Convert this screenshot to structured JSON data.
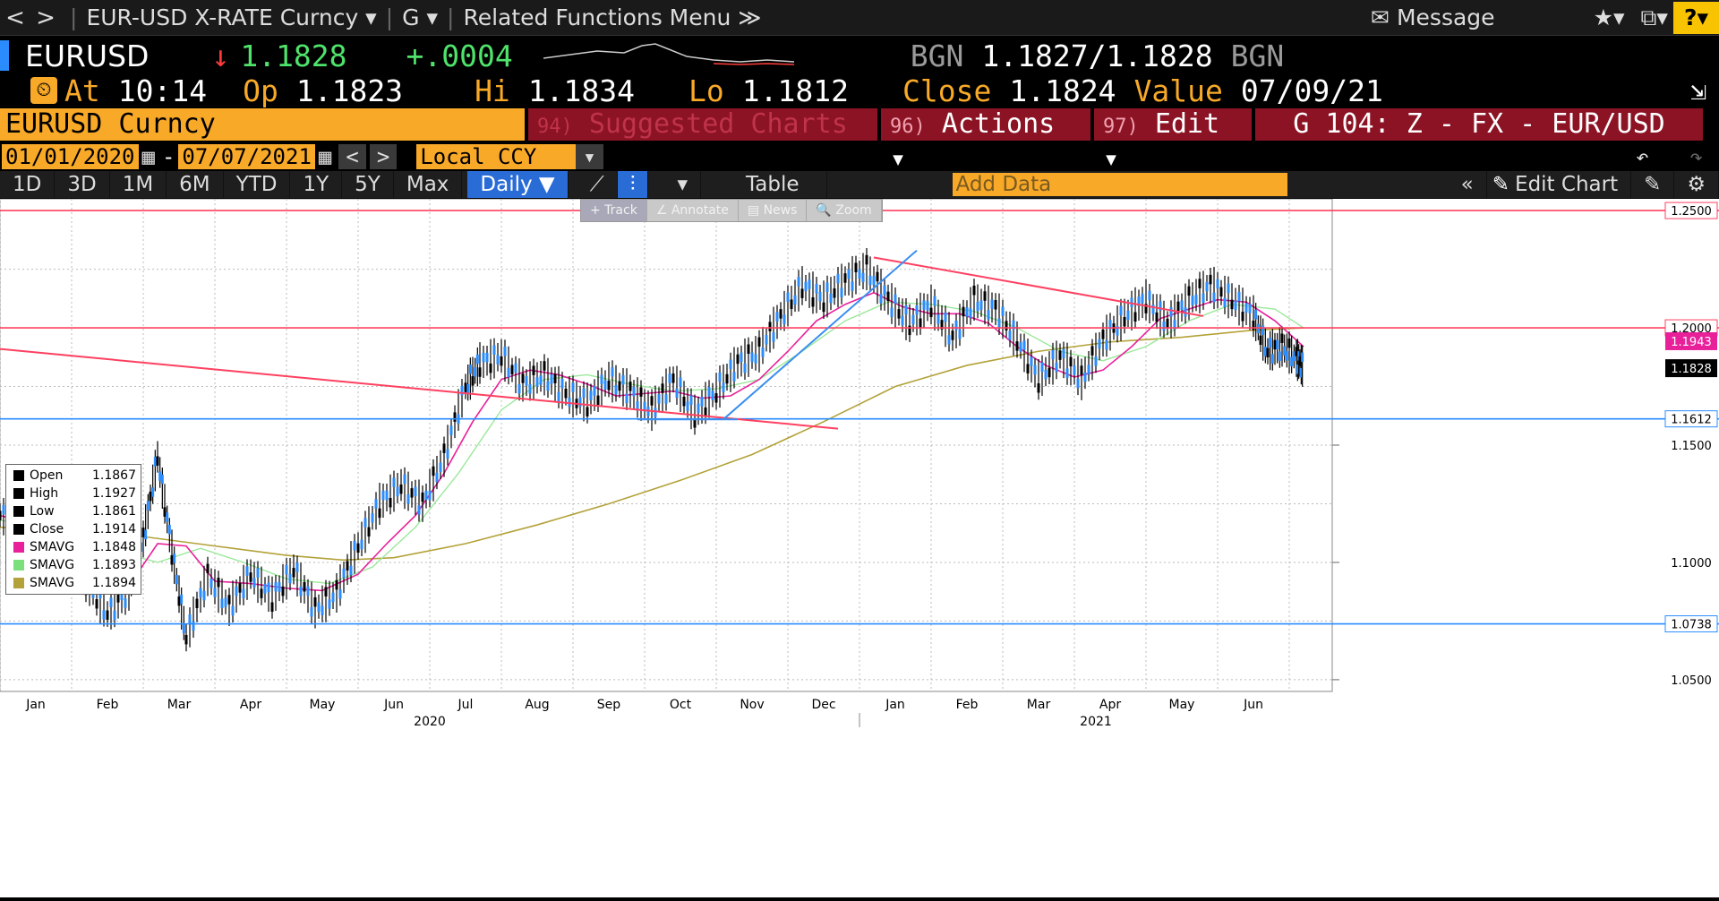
{
  "topbar": {
    "back_label": "<",
    "forward_label": ">",
    "security_label": "EUR-USD X-RATE Curncy ▾",
    "g_label": "G ▾",
    "related_label": "Related Functions Menu ≫",
    "message_label": "Message",
    "star_label": "★▾",
    "window_label": "⧉▾",
    "help_label": "?▾"
  },
  "ticker": {
    "symbol": "EURUSD",
    "arrow": "↓",
    "last": "1.1828",
    "change": "+.0004",
    "bid_src": "BGN",
    "bid_ask": "1.1827/1.1828",
    "ask_src": "BGN"
  },
  "quote": {
    "at_label": "At",
    "time": "10:14",
    "op_label": "Op",
    "op": "1.1823",
    "hi_label": "Hi",
    "hi": "1.1834",
    "lo_label": "Lo",
    "lo": "1.1812",
    "close_label": "Close",
    "close": "1.1824",
    "value_label": "Value",
    "value_date": "07/09/21"
  },
  "secbar": {
    "name": "EURUSD Curncy",
    "suggested_num": "94)",
    "suggested_label": "Suggested Charts",
    "actions_num": "96)",
    "actions_label": "Actions ▾",
    "edit_num": "97)",
    "edit_label": "Edit ▾",
    "gtitle": "G 104: Z - FX - EUR/USD"
  },
  "datebar": {
    "start": "01/01/2020",
    "dash": "-",
    "end": "07/07/2021",
    "ccy": "Local CCY"
  },
  "periods": [
    "1D",
    "3D",
    "1M",
    "6M",
    "YTD",
    "1Y",
    "5Y",
    "Max"
  ],
  "periodbar": {
    "freq": "Daily ▼",
    "table_label": "Table",
    "add_data_placeholder": "Add Data",
    "edit_chart_label": "Edit Chart"
  },
  "toolstrip": [
    "+ Track",
    "∠ Annotate",
    "▤ News",
    "🔍 Zoom"
  ],
  "legend": [
    {
      "name": "Open",
      "value": "1.1867",
      "color": "#000000"
    },
    {
      "name": "High",
      "value": "1.1927",
      "color": "#000000"
    },
    {
      "name": "Low",
      "value": "1.1861",
      "color": "#000000"
    },
    {
      "name": "Close",
      "value": "1.1914",
      "color": "#000000"
    },
    {
      "name": "SMAVG",
      "value": "1.1848",
      "color": "#e8219a"
    },
    {
      "name": "SMAVG",
      "value": "1.1893",
      "color": "#7be07b"
    },
    {
      "name": "SMAVG",
      "value": "1.1894",
      "color": "#b3a23a"
    }
  ],
  "chart_data": {
    "type": "line",
    "ylim": [
      1.045,
      1.255
    ],
    "yticks": [
      "1.0500",
      "1.1000",
      "1.1500"
    ],
    "xlim": [
      0,
      18.6
    ],
    "months": [
      {
        "label": "Jan",
        "x": 0.5
      },
      {
        "label": "Feb",
        "x": 1.5
      },
      {
        "label": "Mar",
        "x": 2.5
      },
      {
        "label": "Apr",
        "x": 3.5
      },
      {
        "label": "May",
        "x": 4.5
      },
      {
        "label": "Jun",
        "x": 5.5
      },
      {
        "label": "Jul",
        "x": 6.5
      },
      {
        "label": "Aug",
        "x": 7.5
      },
      {
        "label": "Sep",
        "x": 8.5
      },
      {
        "label": "Oct",
        "x": 9.5
      },
      {
        "label": "Nov",
        "x": 10.5
      },
      {
        "label": "Dec",
        "x": 11.5
      },
      {
        "label": "Jan",
        "x": 12.5
      },
      {
        "label": "Feb",
        "x": 13.5
      },
      {
        "label": "Mar",
        "x": 14.5
      },
      {
        "label": "Apr",
        "x": 15.5
      },
      {
        "label": "May",
        "x": 16.5
      },
      {
        "label": "Jun",
        "x": 17.5
      }
    ],
    "years": [
      {
        "label": "2020",
        "x": 6.0
      },
      {
        "label": "2021",
        "x": 15.3
      }
    ],
    "price": {
      "x": [
        0,
        0.3,
        0.6,
        0.9,
        1.2,
        1.5,
        1.8,
        2.0,
        2.2,
        2.4,
        2.6,
        2.9,
        3.2,
        3.5,
        3.8,
        4.1,
        4.4,
        4.7,
        5.0,
        5.3,
        5.6,
        5.9,
        6.2,
        6.5,
        6.7,
        7.0,
        7.3,
        7.6,
        7.9,
        8.2,
        8.5,
        8.8,
        9.1,
        9.4,
        9.7,
        10.0,
        10.3,
        10.6,
        10.9,
        11.2,
        11.5,
        11.8,
        12.1,
        12.4,
        12.7,
        13.0,
        13.3,
        13.6,
        13.9,
        14.2,
        14.5,
        14.8,
        15.1,
        15.4,
        15.7,
        16.0,
        16.3,
        16.6,
        16.9,
        17.2,
        17.5,
        17.7,
        17.9,
        18.1,
        18.2
      ],
      "y": [
        1.12,
        1.117,
        1.114,
        1.1,
        1.092,
        1.078,
        1.088,
        1.11,
        1.145,
        1.105,
        1.068,
        1.094,
        1.081,
        1.095,
        1.085,
        1.097,
        1.08,
        1.087,
        1.107,
        1.125,
        1.133,
        1.125,
        1.145,
        1.175,
        1.185,
        1.188,
        1.176,
        1.18,
        1.172,
        1.168,
        1.178,
        1.173,
        1.165,
        1.178,
        1.163,
        1.173,
        1.185,
        1.19,
        1.205,
        1.218,
        1.212,
        1.22,
        1.225,
        1.212,
        1.202,
        1.21,
        1.196,
        1.212,
        1.208,
        1.195,
        1.178,
        1.188,
        1.178,
        1.195,
        1.205,
        1.212,
        1.202,
        1.212,
        1.218,
        1.212,
        1.205,
        1.19,
        1.192,
        1.187,
        1.183
      ]
    },
    "sma_pink": {
      "x": [
        0,
        0.6,
        1.2,
        1.8,
        2.2,
        2.6,
        3.0,
        3.5,
        4.0,
        4.5,
        5.0,
        5.4,
        5.8,
        6.2,
        6.6,
        7.0,
        7.4,
        7.8,
        8.2,
        8.6,
        9.0,
        9.4,
        9.8,
        10.2,
        10.6,
        11.0,
        11.4,
        11.8,
        12.2,
        12.6,
        13.0,
        13.4,
        13.8,
        14.2,
        14.6,
        15.0,
        15.4,
        15.8,
        16.2,
        16.6,
        17.0,
        17.4,
        17.8,
        18.2
      ],
      "y": [
        1.12,
        1.115,
        1.103,
        1.09,
        1.108,
        1.107,
        1.092,
        1.091,
        1.089,
        1.088,
        1.095,
        1.108,
        1.12,
        1.138,
        1.16,
        1.178,
        1.182,
        1.18,
        1.176,
        1.171,
        1.172,
        1.173,
        1.17,
        1.171,
        1.178,
        1.19,
        1.203,
        1.21,
        1.215,
        1.209,
        1.206,
        1.206,
        1.202,
        1.192,
        1.184,
        1.179,
        1.182,
        1.192,
        1.204,
        1.208,
        1.212,
        1.211,
        1.203,
        1.192
      ]
    },
    "sma_green": {
      "x": [
        0,
        0.8,
        1.6,
        2.2,
        2.8,
        3.4,
        4.0,
        4.6,
        5.2,
        5.8,
        6.4,
        7.0,
        7.6,
        8.2,
        8.8,
        9.4,
        10.0,
        10.6,
        11.2,
        11.8,
        12.4,
        13.0,
        13.6,
        14.2,
        14.8,
        15.4,
        16.0,
        16.6,
        17.2,
        17.8,
        18.2
      ],
      "y": [
        1.118,
        1.114,
        1.105,
        1.1,
        1.106,
        1.1,
        1.093,
        1.091,
        1.098,
        1.115,
        1.138,
        1.165,
        1.178,
        1.18,
        1.176,
        1.173,
        1.174,
        1.178,
        1.19,
        1.203,
        1.211,
        1.21,
        1.207,
        1.2,
        1.19,
        1.186,
        1.192,
        1.203,
        1.21,
        1.208,
        1.2
      ]
    },
    "sma_olive": {
      "x": [
        0,
        1,
        2,
        3,
        4,
        4.8,
        5.5,
        6.5,
        7.5,
        8.5,
        9.5,
        10.5,
        11.5,
        12.5,
        13.5,
        14.5,
        15.5,
        16.5,
        17.5,
        18.2
      ],
      "y": [
        1.115,
        1.113,
        1.111,
        1.107,
        1.103,
        1.101,
        1.102,
        1.108,
        1.116,
        1.125,
        1.135,
        1.146,
        1.16,
        1.175,
        1.184,
        1.19,
        1.194,
        1.196,
        1.199,
        1.2
      ]
    },
    "annotations": {
      "hlines": [
        {
          "y": 1.25,
          "color": "#ff4060",
          "label": "1.2500"
        },
        {
          "y": 1.2,
          "color": "#ff4060",
          "label": "1.2000"
        },
        {
          "y": 1.1612,
          "color": "#2a8cff",
          "label": "1.1612"
        },
        {
          "y": 1.0738,
          "color": "#2a8cff",
          "label": "1.0738"
        }
      ],
      "current_label": "1.1828",
      "current_value": 1.1828,
      "pink_label": "1.1943",
      "pink_value": 1.1943,
      "trend_lines": [
        {
          "x1": 0,
          "y1": 1.191,
          "x2": 11.7,
          "y2": 1.157,
          "color": "#ff4060"
        },
        {
          "x1": 12.2,
          "y1": 1.23,
          "x2": 16.8,
          "y2": 1.205,
          "color": "#ff4060"
        },
        {
          "x1": 10.1,
          "y1": 1.161,
          "x2": 12.8,
          "y2": 1.233,
          "color": "#3a8ff0"
        },
        {
          "x1": 8.9,
          "y1": 1.161,
          "x2": 10.3,
          "y2": 1.161,
          "color": "#3a8ff0"
        }
      ]
    }
  }
}
